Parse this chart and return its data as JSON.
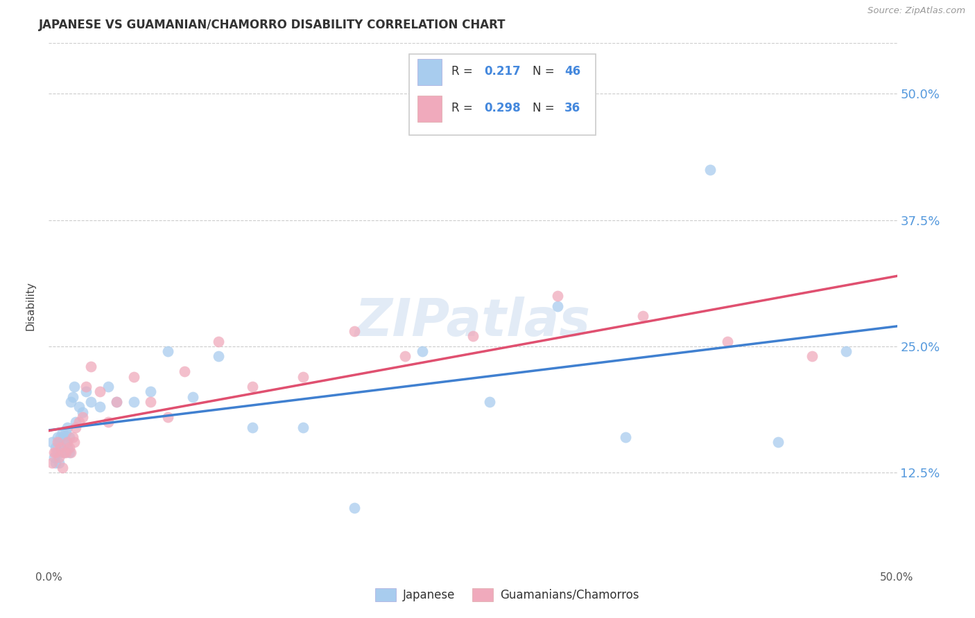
{
  "title": "JAPANESE VS GUAMANIAN/CHAMORRO DISABILITY CORRELATION CHART",
  "source": "Source: ZipAtlas.com",
  "ylabel": "Disability",
  "ytick_labels": [
    "12.5%",
    "25.0%",
    "37.5%",
    "50.0%"
  ],
  "ytick_values": [
    0.125,
    0.25,
    0.375,
    0.5
  ],
  "xlim": [
    0.0,
    0.5
  ],
  "ylim": [
    0.03,
    0.55
  ],
  "legend_r1_val": "0.217",
  "legend_n1_val": "46",
  "legend_r2_val": "0.298",
  "legend_n2_val": "36",
  "blue_scatter_color": "#A8CCEE",
  "pink_scatter_color": "#F0AABC",
  "line_blue_color": "#4080D0",
  "line_pink_color": "#E05070",
  "dashed_line_color": "#C8C8C8",
  "watermark_color": "#D0DFF0",
  "background_color": "#ffffff",
  "grid_color": "#CCCCCC",
  "japanese_x": [
    0.002,
    0.003,
    0.004,
    0.004,
    0.005,
    0.005,
    0.006,
    0.006,
    0.007,
    0.007,
    0.008,
    0.008,
    0.009,
    0.009,
    0.01,
    0.01,
    0.011,
    0.011,
    0.012,
    0.012,
    0.013,
    0.014,
    0.015,
    0.016,
    0.018,
    0.02,
    0.022,
    0.025,
    0.03,
    0.035,
    0.04,
    0.05,
    0.06,
    0.07,
    0.085,
    0.1,
    0.12,
    0.15,
    0.18,
    0.22,
    0.26,
    0.3,
    0.34,
    0.39,
    0.43,
    0.47
  ],
  "japanese_y": [
    0.155,
    0.14,
    0.15,
    0.135,
    0.145,
    0.16,
    0.135,
    0.155,
    0.145,
    0.16,
    0.15,
    0.165,
    0.145,
    0.16,
    0.155,
    0.165,
    0.15,
    0.17,
    0.145,
    0.16,
    0.195,
    0.2,
    0.21,
    0.175,
    0.19,
    0.185,
    0.205,
    0.195,
    0.19,
    0.21,
    0.195,
    0.195,
    0.205,
    0.245,
    0.2,
    0.24,
    0.17,
    0.17,
    0.09,
    0.245,
    0.195,
    0.29,
    0.16,
    0.425,
    0.155,
    0.245
  ],
  "chamorro_x": [
    0.002,
    0.003,
    0.004,
    0.005,
    0.006,
    0.007,
    0.008,
    0.009,
    0.01,
    0.011,
    0.012,
    0.013,
    0.014,
    0.015,
    0.016,
    0.018,
    0.02,
    0.022,
    0.025,
    0.03,
    0.035,
    0.04,
    0.05,
    0.06,
    0.07,
    0.08,
    0.1,
    0.12,
    0.15,
    0.18,
    0.21,
    0.25,
    0.3,
    0.35,
    0.4,
    0.45
  ],
  "chamorro_y": [
    0.135,
    0.145,
    0.145,
    0.155,
    0.14,
    0.15,
    0.13,
    0.145,
    0.145,
    0.155,
    0.15,
    0.145,
    0.16,
    0.155,
    0.17,
    0.175,
    0.18,
    0.21,
    0.23,
    0.205,
    0.175,
    0.195,
    0.22,
    0.195,
    0.18,
    0.225,
    0.255,
    0.21,
    0.22,
    0.265,
    0.24,
    0.26,
    0.3,
    0.28,
    0.255,
    0.24
  ],
  "watermark": "ZIPatlas"
}
